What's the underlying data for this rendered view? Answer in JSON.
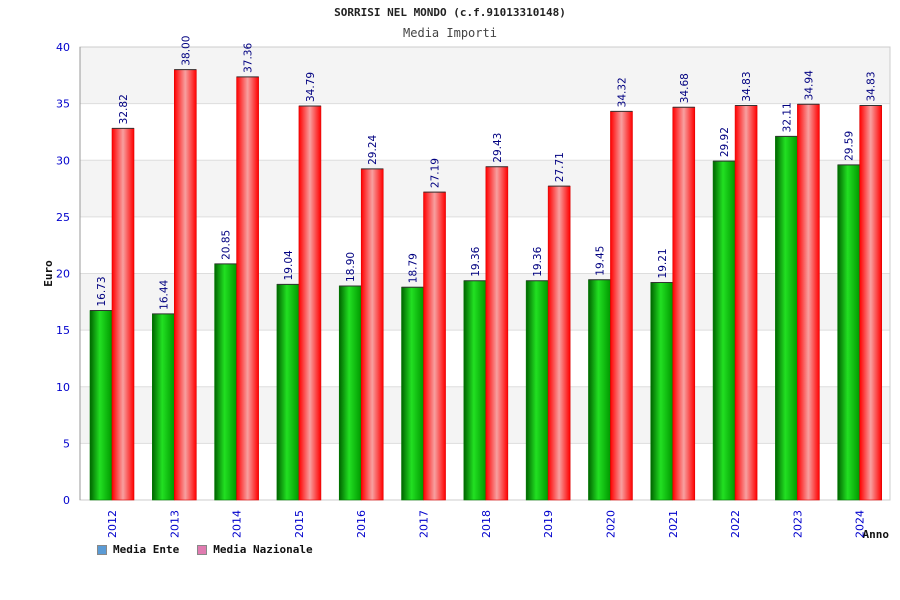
{
  "chart_data": {
    "type": "bar",
    "title": "SORRISI NEL MONDO (c.f.91013310148)",
    "subtitle": "Media Importi",
    "xlabel": "Anno",
    "ylabel": "Euro",
    "ylim": [
      0,
      40
    ],
    "yticks": [
      0,
      5,
      10,
      15,
      20,
      25,
      30,
      35,
      40
    ],
    "grid": true,
    "legend_position": "bottom-left",
    "categories": [
      "2012",
      "2013",
      "2014",
      "2015",
      "2016",
      "2017",
      "2018",
      "2019",
      "2020",
      "2021",
      "2022",
      "2023",
      "2024"
    ],
    "series": [
      {
        "name": "Media Ente",
        "values": [
          16.73,
          16.44,
          20.85,
          19.04,
          18.9,
          18.79,
          19.36,
          19.36,
          19.45,
          19.21,
          29.92,
          32.11,
          29.59
        ],
        "labels": [
          "16.73",
          "16.44",
          "20.85",
          "19.04",
          "18.90",
          "18.79",
          "19.36",
          "19.36",
          "19.45",
          "19.21",
          "29.92",
          "32.11",
          "29.59"
        ],
        "color": "#00b400",
        "legend_color": "#5b9bd5"
      },
      {
        "name": "Media Nazionale",
        "values": [
          32.82,
          38.0,
          37.36,
          34.79,
          29.24,
          27.19,
          29.43,
          27.71,
          34.32,
          34.68,
          34.83,
          34.94,
          34.83
        ],
        "labels": [
          "32.82",
          "38.00",
          "37.36",
          "34.79",
          "29.24",
          "27.19",
          "29.43",
          "27.71",
          "34.32",
          "34.68",
          "34.83",
          "34.94",
          "34.83"
        ],
        "color": "#ff0000",
        "legend_color": "#e07bb0"
      }
    ]
  },
  "colors": {
    "axis_text": "#0000cc",
    "label_text": "#000080",
    "band_light": "#f4f4f4",
    "band_white": "#ffffff",
    "grid": "#dddddd"
  }
}
